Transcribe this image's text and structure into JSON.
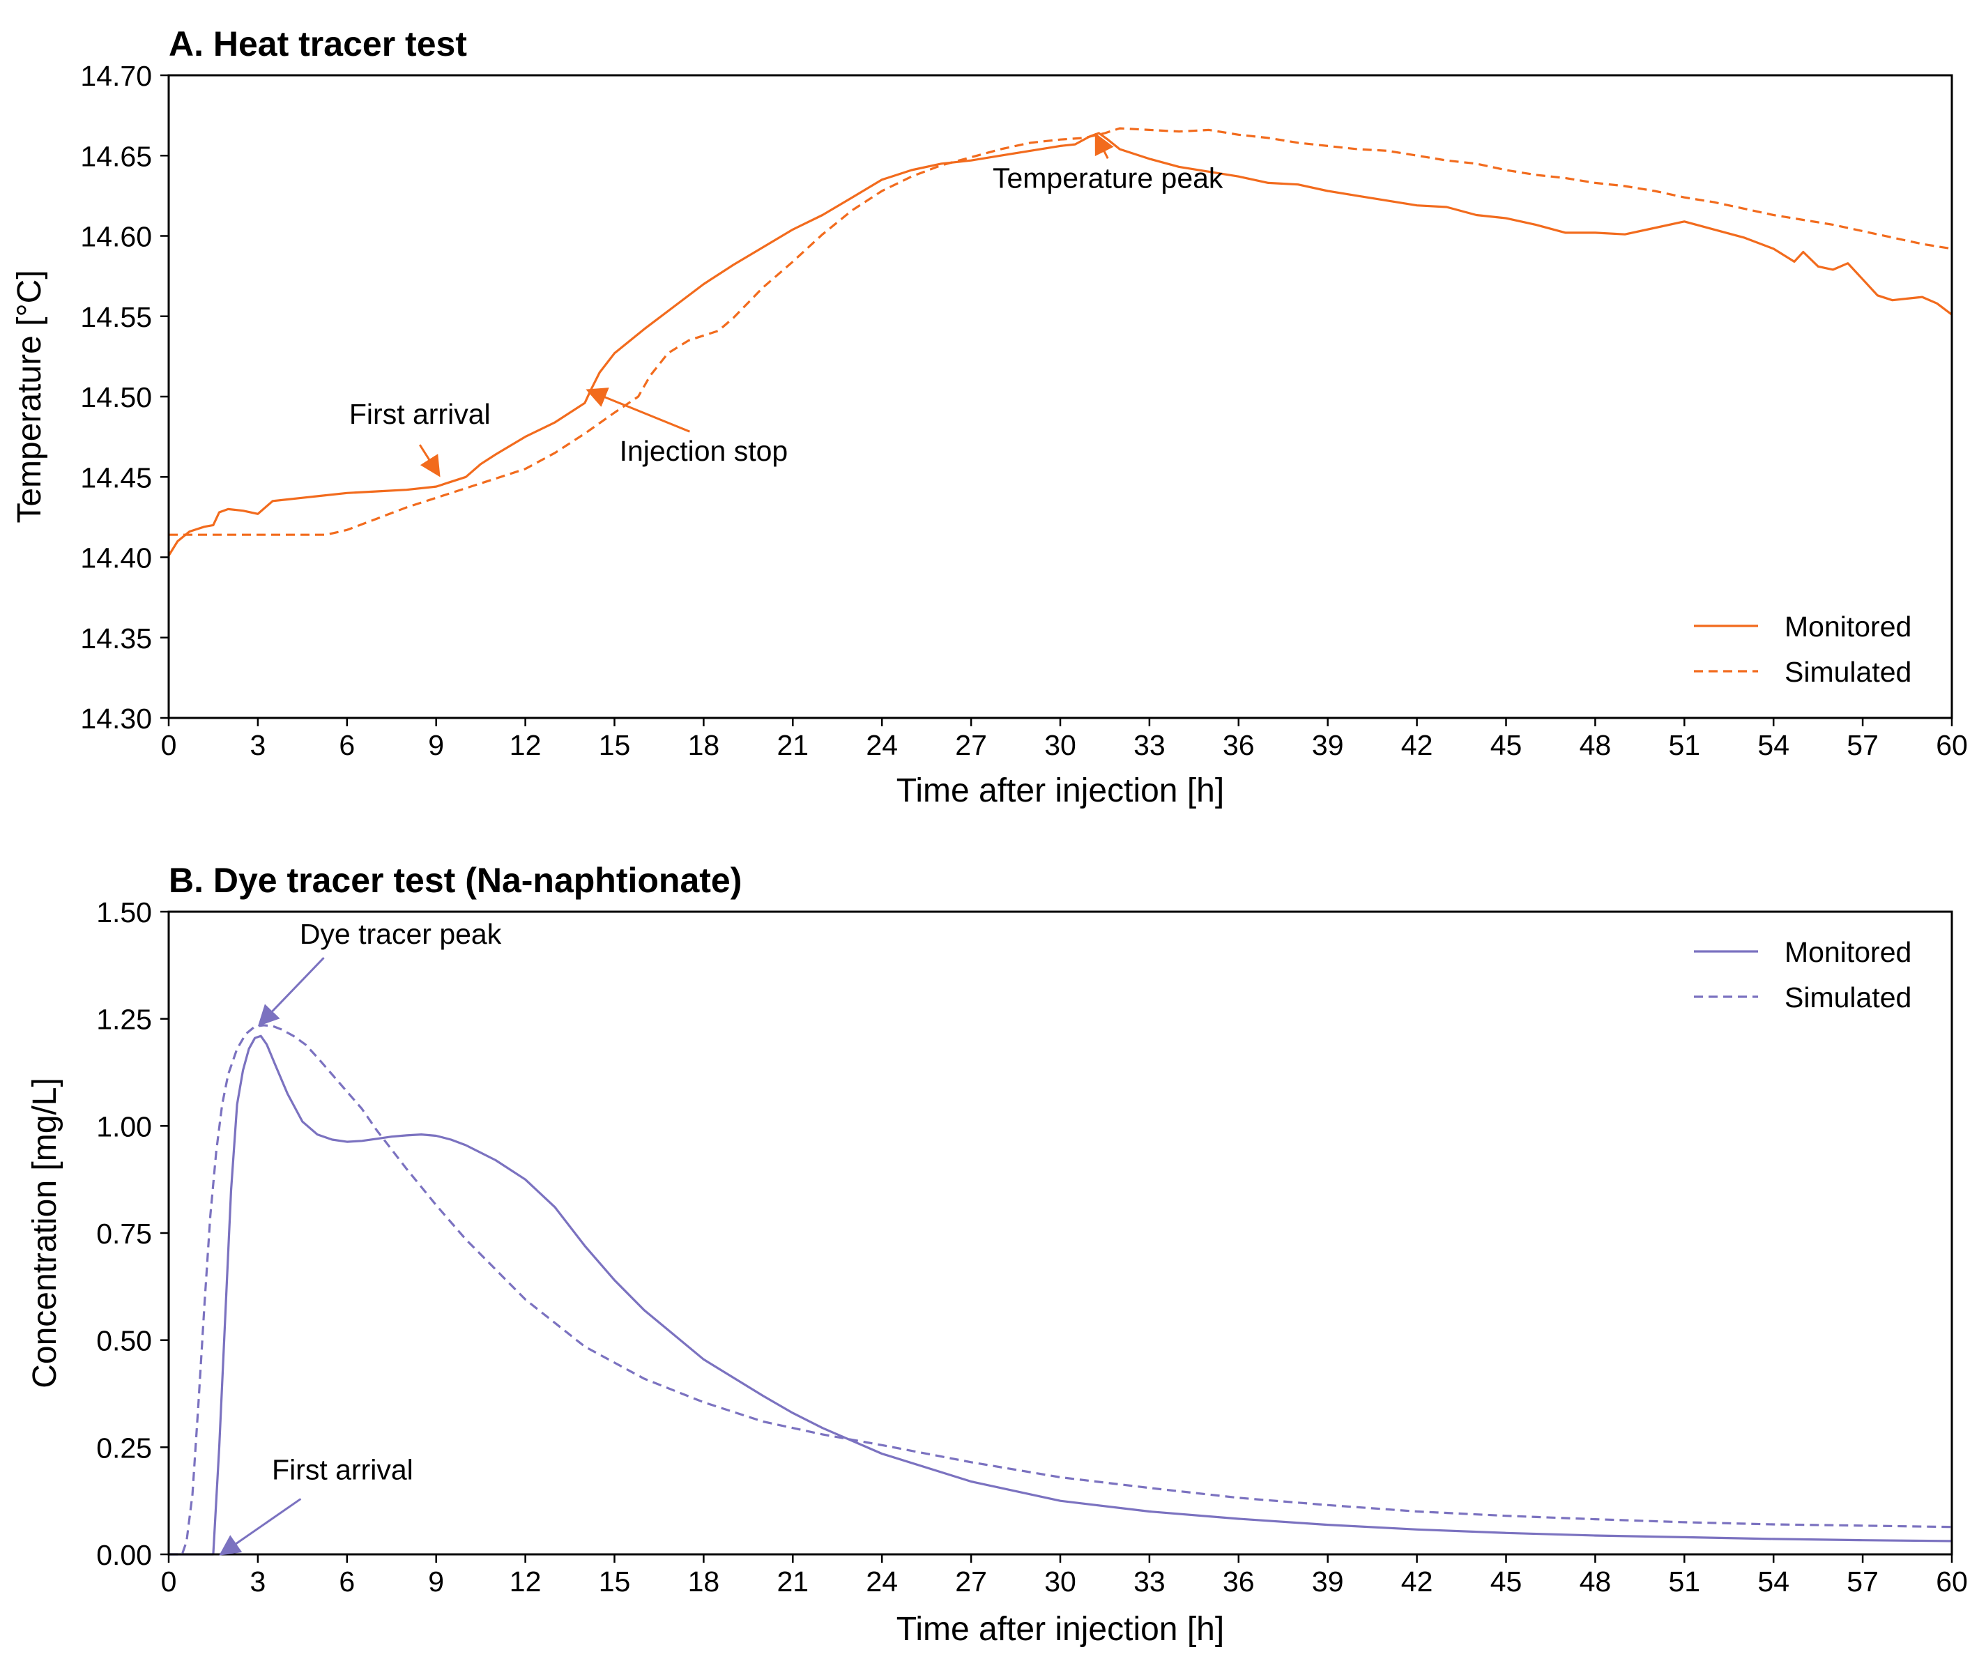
{
  "chart_data": [
    {
      "type": "line",
      "title": "A. Heat tracer test",
      "xlabel": "Time after injection [h]",
      "ylabel": "Temperature [°C]",
      "xlim": [
        0,
        60
      ],
      "ylim": [
        14.3,
        14.7
      ],
      "x_ticks": [
        0,
        3,
        6,
        9,
        12,
        15,
        18,
        21,
        24,
        27,
        30,
        33,
        36,
        39,
        42,
        45,
        48,
        51,
        54,
        57,
        60
      ],
      "x_tick_labels": [
        "0",
        "3",
        "6",
        "9",
        "12",
        "15",
        "18",
        "21",
        "24",
        "27",
        "30",
        "33",
        "36",
        "39",
        "42",
        "45",
        "48",
        "51",
        "54",
        "57",
        "60"
      ],
      "y_ticks": [
        14.3,
        14.35,
        14.4,
        14.45,
        14.5,
        14.55,
        14.6,
        14.65,
        14.7
      ],
      "y_tick_labels": [
        "14.30",
        "14.35",
        "14.40",
        "14.45",
        "14.50",
        "14.55",
        "14.60",
        "14.65",
        "14.70"
      ],
      "grid": false,
      "legend": "lower-right",
      "color": "#f26b1d",
      "series": [
        {
          "name": "Monitored",
          "style": "solid",
          "x": [
            0,
            0.3,
            0.7,
            1.2,
            1.5,
            1.7,
            2.0,
            2.5,
            3.0,
            3.5,
            4.0,
            4.5,
            5.0,
            6.0,
            7.0,
            8.0,
            9.0,
            9.5,
            10.0,
            10.5,
            11.0,
            12.0,
            13.0,
            14.0,
            14.2,
            14.5,
            15.0,
            16.0,
            17.0,
            18.0,
            19.0,
            20.0,
            21.0,
            22.0,
            23.0,
            24.0,
            25.0,
            26.0,
            27.0,
            28.0,
            29.0,
            30.0,
            30.5,
            31.0,
            31.3,
            31.6,
            32.0,
            33.0,
            34.0,
            35.0,
            36.0,
            37.0,
            38.0,
            39.0,
            40.0,
            41.0,
            42.0,
            43.0,
            44.0,
            45.0,
            46.0,
            47.0,
            48.0,
            49.0,
            50.0,
            51.0,
            52.0,
            53.0,
            54.0,
            54.7,
            55.0,
            55.5,
            56.0,
            56.5,
            57.0,
            57.5,
            58.0,
            58.5,
            59.0,
            59.5,
            60.0
          ],
          "y": [
            14.401,
            14.41,
            14.416,
            14.419,
            14.42,
            14.428,
            14.43,
            14.429,
            14.427,
            14.435,
            14.436,
            14.437,
            14.438,
            14.44,
            14.441,
            14.442,
            14.444,
            14.447,
            14.45,
            14.458,
            14.464,
            14.475,
            14.484,
            14.496,
            14.504,
            14.515,
            14.527,
            14.542,
            14.556,
            14.57,
            14.582,
            14.593,
            14.604,
            14.613,
            14.624,
            14.635,
            14.641,
            14.645,
            14.647,
            14.65,
            14.653,
            14.656,
            14.657,
            14.662,
            14.664,
            14.66,
            14.654,
            14.648,
            14.643,
            14.64,
            14.637,
            14.633,
            14.632,
            14.628,
            14.625,
            14.622,
            14.619,
            14.618,
            14.613,
            14.611,
            14.607,
            14.602,
            14.602,
            14.601,
            14.605,
            14.609,
            14.604,
            14.599,
            14.592,
            14.584,
            14.59,
            14.581,
            14.579,
            14.583,
            14.573,
            14.563,
            14.56,
            14.561,
            14.562,
            14.558,
            14.551
          ]
        },
        {
          "name": "Simulated",
          "style": "dashed",
          "x": [
            0,
            3,
            5.3,
            6,
            7,
            8,
            9,
            10,
            11,
            12,
            13,
            14,
            15,
            15.8,
            16.2,
            16.8,
            17.5,
            18.5,
            19,
            20,
            21,
            22,
            23,
            24,
            25,
            26,
            27,
            28,
            29,
            30,
            30.8,
            31.5,
            32,
            33,
            34,
            35,
            36,
            37,
            38,
            39,
            40,
            41,
            42,
            43,
            44,
            45,
            46,
            47,
            48,
            49,
            50,
            51,
            52,
            53,
            54,
            55,
            56,
            57,
            58,
            59,
            60
          ],
          "y": [
            14.414,
            14.414,
            14.414,
            14.417,
            14.424,
            14.431,
            14.437,
            14.443,
            14.449,
            14.455,
            14.465,
            14.477,
            14.49,
            14.5,
            14.513,
            14.527,
            14.535,
            14.541,
            14.549,
            14.568,
            14.584,
            14.601,
            14.616,
            14.628,
            14.637,
            14.644,
            14.649,
            14.654,
            14.658,
            14.66,
            14.661,
            14.664,
            14.667,
            14.666,
            14.665,
            14.666,
            14.663,
            14.661,
            14.658,
            14.656,
            14.654,
            14.653,
            14.65,
            14.647,
            14.645,
            14.641,
            14.638,
            14.636,
            14.633,
            14.631,
            14.628,
            14.624,
            14.621,
            14.617,
            14.613,
            14.61,
            14.607,
            14.603,
            14.599,
            14.595,
            14.592
          ]
        }
      ],
      "annotations": [
        {
          "text": "First arrival",
          "target_x": 9.1,
          "target_y": 14.451,
          "label_x": 8.45,
          "label_y": 14.483
        },
        {
          "text": "Injection stop",
          "target_x": 14.1,
          "target_y": 14.504,
          "label_x": 18.0,
          "label_y": 14.46
        },
        {
          "text": "Temperature peak",
          "target_x": 31.2,
          "target_y": 14.663,
          "label_x": 31.6,
          "label_y": 14.63
        }
      ]
    },
    {
      "type": "line",
      "title": "B. Dye tracer test (Na-naphtionate)",
      "xlabel": "Time after injection [h]",
      "ylabel": "Concentration [mg/L]",
      "xlim": [
        0,
        60
      ],
      "ylim": [
        0,
        1.5
      ],
      "x_ticks": [
        0,
        3,
        6,
        9,
        12,
        15,
        18,
        21,
        24,
        27,
        30,
        33,
        36,
        39,
        42,
        45,
        48,
        51,
        54,
        57,
        60
      ],
      "x_tick_labels": [
        "0",
        "3",
        "6",
        "9",
        "12",
        "15",
        "18",
        "21",
        "24",
        "27",
        "30",
        "33",
        "36",
        "39",
        "42",
        "45",
        "48",
        "51",
        "54",
        "57",
        "60"
      ],
      "y_ticks": [
        0,
        0.25,
        0.5,
        0.75,
        1.0,
        1.25,
        1.5
      ],
      "y_tick_labels": [
        "0.00",
        "0.25",
        "0.50",
        "0.75",
        "1.00",
        "1.25",
        "1.50"
      ],
      "grid": false,
      "legend": "top-right",
      "color": "#7b72c0",
      "series": [
        {
          "name": "Monitored",
          "style": "solid",
          "x": [
            0,
            1.5,
            1.7,
            1.9,
            2.1,
            2.3,
            2.5,
            2.7,
            2.9,
            3.1,
            3.3,
            3.6,
            4,
            4.5,
            5,
            5.5,
            6,
            6.5,
            7,
            7.5,
            8,
            8.5,
            9,
            9.5,
            10,
            11,
            12,
            13,
            14,
            15,
            16,
            18,
            20,
            21,
            22,
            24,
            27,
            30,
            33,
            36,
            39,
            42,
            45,
            48,
            51,
            54,
            57,
            60
          ],
          "y": [
            0,
            0,
            0.25,
            0.55,
            0.85,
            1.05,
            1.13,
            1.18,
            1.205,
            1.21,
            1.19,
            1.14,
            1.075,
            1.01,
            0.98,
            0.968,
            0.963,
            0.965,
            0.97,
            0.975,
            0.978,
            0.98,
            0.977,
            0.968,
            0.955,
            0.92,
            0.875,
            0.81,
            0.72,
            0.64,
            0.57,
            0.455,
            0.37,
            0.33,
            0.295,
            0.235,
            0.17,
            0.125,
            0.1,
            0.083,
            0.069,
            0.058,
            0.05,
            0.044,
            0.04,
            0.036,
            0.033,
            0.031
          ]
        },
        {
          "name": "Simulated",
          "style": "dashed",
          "x": [
            0,
            0.45,
            0.6,
            0.8,
            1.0,
            1.2,
            1.4,
            1.6,
            1.8,
            2.0,
            2.3,
            2.6,
            2.9,
            3.2,
            3.5,
            3.8,
            4.2,
            4.6,
            5,
            5.5,
            6,
            6.5,
            7,
            8,
            9,
            10,
            12,
            14,
            16,
            18,
            20,
            22,
            24,
            27,
            30,
            33,
            36,
            39,
            42,
            45,
            48,
            51,
            54,
            57,
            60
          ],
          "y": [
            0,
            0,
            0.03,
            0.14,
            0.35,
            0.58,
            0.79,
            0.94,
            1.05,
            1.12,
            1.18,
            1.215,
            1.232,
            1.235,
            1.233,
            1.225,
            1.21,
            1.19,
            1.16,
            1.12,
            1.08,
            1.04,
            0.99,
            0.9,
            0.815,
            0.735,
            0.595,
            0.485,
            0.41,
            0.355,
            0.31,
            0.28,
            0.255,
            0.215,
            0.18,
            0.155,
            0.132,
            0.115,
            0.1,
            0.09,
            0.082,
            0.075,
            0.07,
            0.067,
            0.064
          ]
        }
      ],
      "annotations": [
        {
          "text": "Dye tracer peak",
          "target_x": 3.05,
          "target_y": 1.236,
          "label_x": 7.8,
          "label_y": 1.425
        },
        {
          "text": "First arrival",
          "target_x": 1.75,
          "target_y": 0.0,
          "label_x": 5.85,
          "label_y": 0.175
        }
      ]
    }
  ]
}
